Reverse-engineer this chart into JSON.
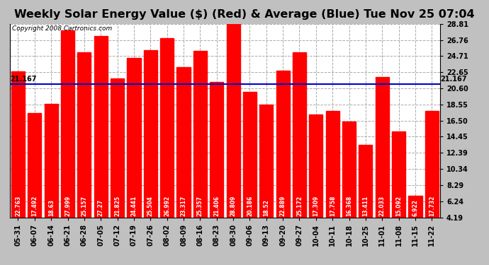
{
  "title": "Weekly Solar Energy Value ($) (Red) & Average (Blue) Tue Nov 25 07:04",
  "copyright": "Copyright 2008 Cartronics.com",
  "average": 21.167,
  "categories": [
    "05-31",
    "06-07",
    "06-14",
    "06-21",
    "06-28",
    "07-05",
    "07-12",
    "07-19",
    "07-26",
    "08-02",
    "08-09",
    "08-16",
    "08-23",
    "08-30",
    "09-06",
    "09-13",
    "09-20",
    "09-27",
    "10-04",
    "10-11",
    "10-18",
    "10-25",
    "11-01",
    "11-08",
    "11-15",
    "11-22"
  ],
  "values": [
    22.763,
    17.492,
    18.63,
    27.999,
    25.157,
    27.27,
    21.825,
    24.441,
    25.504,
    26.992,
    23.317,
    25.357,
    21.406,
    28.809,
    20.186,
    18.52,
    22.889,
    25.172,
    17.309,
    17.758,
    16.368,
    13.411,
    22.033,
    15.092,
    6.922,
    17.732
  ],
  "bar_color": "#ff0000",
  "avg_line_color": "#0000cc",
  "title_bg_color": "#c0c0c0",
  "plot_bg_color": "#ffffff",
  "outer_bg_color": "#c0c0c0",
  "yticks": [
    4.19,
    6.24,
    8.29,
    10.34,
    12.39,
    14.45,
    16.5,
    18.55,
    20.6,
    22.65,
    24.71,
    26.76,
    28.81
  ],
  "ylim_min": 4.19,
  "ylim_max": 28.81,
  "title_fontsize": 11.5,
  "copyright_fontsize": 6.5,
  "bar_label_fontsize": 5.5,
  "tick_fontsize": 7,
  "avg_label": "21.167",
  "avg_label_fontsize": 7,
  "grid_color": "#aaaaaa",
  "bar_width": 0.82
}
